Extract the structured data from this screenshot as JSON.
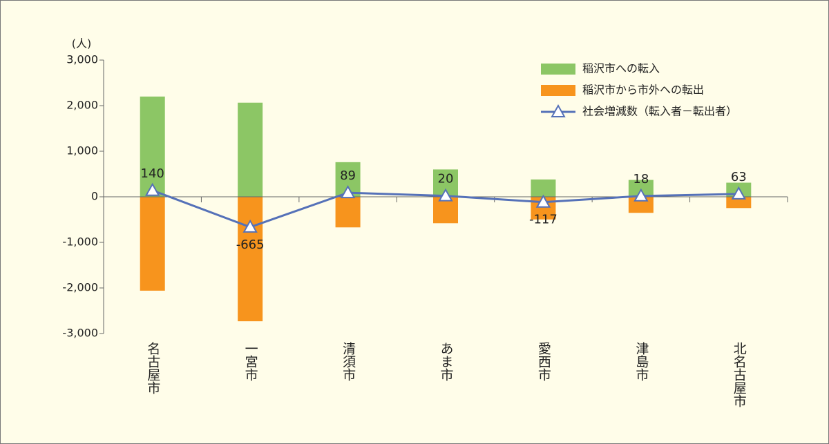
{
  "chart_data": {
    "type": "bar_line",
    "y_label": "(人)",
    "categories": [
      "名古屋市",
      "一宮市",
      "清須市",
      "あま市",
      "愛西市",
      "津島市",
      "北名古屋市"
    ],
    "series": [
      {
        "name": "稲沢市への転入",
        "type": "bar",
        "color": "#8cc665",
        "values": [
          2200,
          2065,
          760,
          600,
          380,
          370,
          310
        ]
      },
      {
        "name": "稲沢市から市外への転出",
        "type": "bar",
        "color": "#f7941d",
        "values": [
          -2060,
          -2730,
          -671,
          -580,
          -497,
          -352,
          -247
        ]
      },
      {
        "name": "社会増減数（転入者－転出者）",
        "type": "line",
        "color": "#5571b8",
        "values": [
          140,
          -665,
          89,
          20,
          -117,
          18,
          63
        ]
      }
    ],
    "ylim": [
      -3000,
      3000
    ],
    "yticks": [
      {
        "value": -3000,
        "label": "-3,000"
      },
      {
        "value": -2000,
        "label": "-2,000"
      },
      {
        "value": -1000,
        "label": "-1,000"
      },
      0,
      {
        "value": 1000,
        "label": "1,000"
      },
      {
        "value": 2000,
        "label": "2,000"
      },
      {
        "value": 3000,
        "label": "3,000"
      }
    ],
    "legend": "upper right"
  }
}
